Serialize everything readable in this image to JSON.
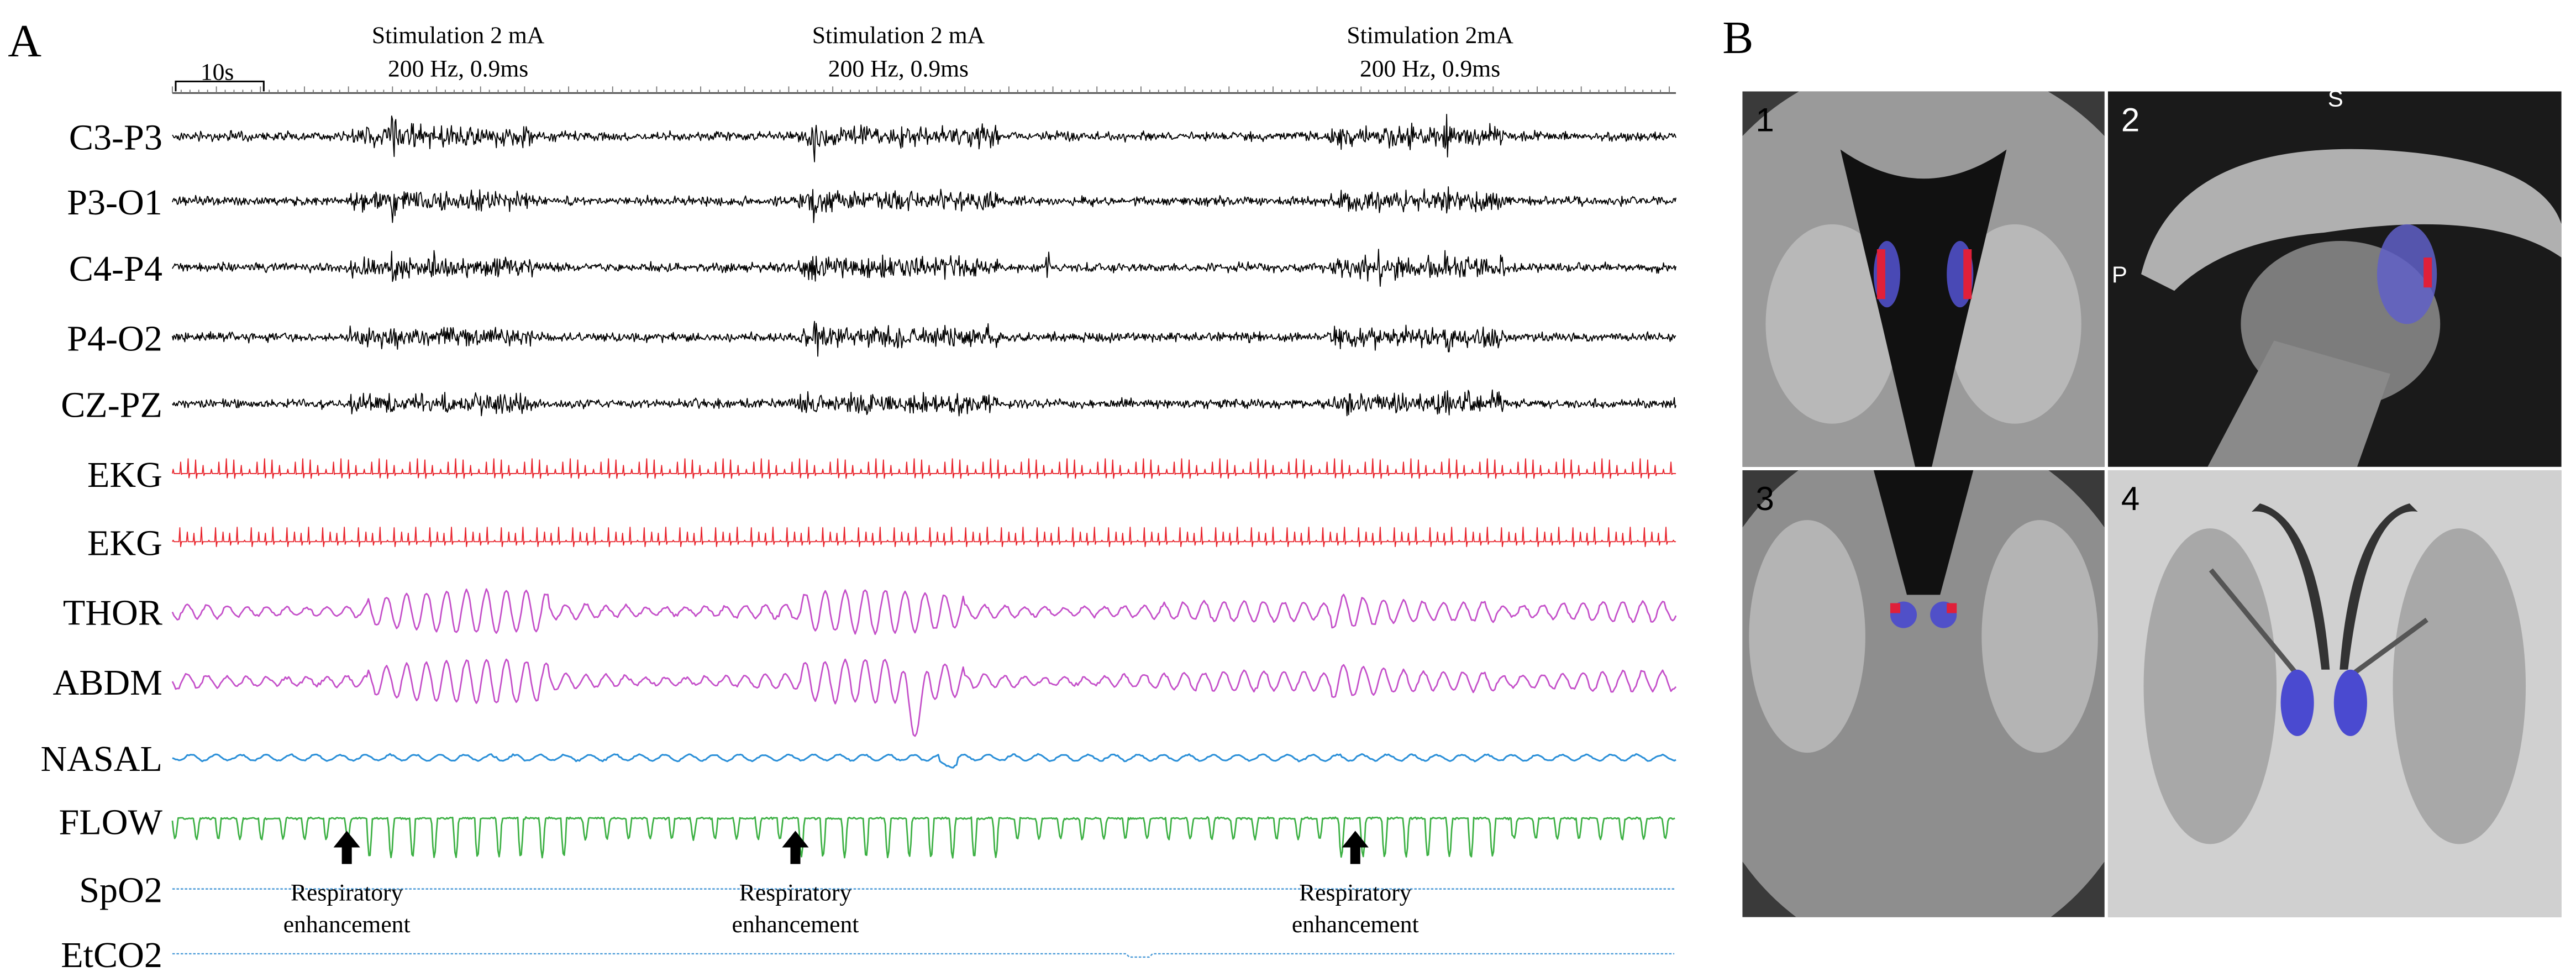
{
  "figure": {
    "panel_labels": [
      "A",
      "B"
    ],
    "stimulations": [
      {
        "line1": "Stimulation 2 mA",
        "line2": "200 Hz, 0.9ms"
      },
      {
        "line1": "Stimulation 2 mA",
        "line2": "200 Hz, 0.9ms"
      },
      {
        "line1": "Stimulation 2mA",
        "line2": "200 Hz, 0.9ms"
      }
    ],
    "scale_bar": "10s",
    "channels": [
      "C3-P3",
      "P3-O1",
      "C4-P4",
      "P4-O2",
      "CZ-PZ",
      "EKG",
      "EKG",
      "THOR",
      "ABDM",
      "NASAL",
      "FLOW",
      "SpO2",
      "EtCO2"
    ],
    "annotations": [
      {
        "line1": "Respiratory",
        "line2": "enhancement"
      },
      {
        "line1": "Respiratory",
        "line2": "enhancement"
      },
      {
        "line1": "Respiratory",
        "line2": "enhancement"
      }
    ],
    "mri_panels": [
      "1",
      "2",
      "3",
      "4"
    ],
    "orientation": [
      "S",
      "P"
    ]
  }
}
